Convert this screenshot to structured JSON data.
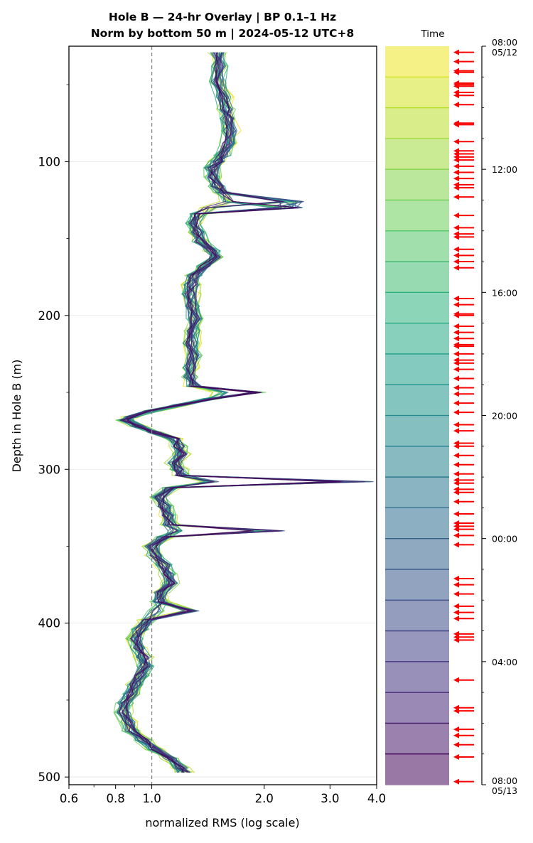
{
  "title_line1": "Hole B — 24-hr Overlay  |  BP 0.1–1 Hz",
  "title_line2": "Norm by bottom 50 m  |  2024-05-12 UTC+8",
  "colorbar_label": "Time",
  "chart_data": {
    "type": "line",
    "xlabel": "normalized RMS  (log scale)",
    "ylabel": "Depth in Hole B (m)",
    "xscale": "log",
    "xlim": [
      0.6,
      4.0
    ],
    "xticks": [
      0.6,
      0.8,
      1.0,
      2.0,
      3.0,
      4.0
    ],
    "xtick_labels": [
      "0.6",
      "0.8",
      "1.0",
      "2.0",
      "3.0",
      "4.0"
    ],
    "ylim": [
      505,
      25
    ],
    "yticks": [
      100,
      200,
      300,
      400,
      500
    ],
    "reference_line_x": 1.0,
    "grid": "horizontal",
    "num_traces": 36,
    "colormap": "viridis (early = yellow, late = dark purple)",
    "series_depths_m": [
      29,
      38,
      48,
      58,
      66,
      72,
      80,
      88,
      96,
      100,
      104,
      110,
      116,
      120,
      126,
      130,
      134,
      140,
      146,
      152,
      158,
      162,
      168,
      174,
      180,
      186,
      194,
      202,
      210,
      218,
      226,
      234,
      240,
      246,
      250,
      254,
      258,
      262,
      266,
      268,
      272,
      276,
      280,
      285,
      290,
      296,
      300,
      304,
      308,
      312,
      318,
      324,
      330,
      336,
      340,
      344,
      350,
      356,
      362,
      368,
      374,
      380,
      386,
      392,
      398,
      404,
      410,
      416,
      422,
      428,
      434,
      440,
      446,
      452,
      458,
      464,
      470,
      476,
      482,
      488,
      494,
      497
    ],
    "median_profile_rms": [
      1.5,
      1.52,
      1.5,
      1.55,
      1.58,
      1.6,
      1.62,
      1.6,
      1.55,
      1.5,
      1.45,
      1.46,
      1.5,
      1.55,
      1.6,
      1.42,
      1.33,
      1.3,
      1.32,
      1.35,
      1.45,
      1.48,
      1.38,
      1.3,
      1.28,
      1.27,
      1.28,
      1.3,
      1.28,
      1.27,
      1.29,
      1.27,
      1.26,
      1.3,
      1.55,
      1.45,
      1.2,
      1.0,
      0.88,
      0.85,
      0.92,
      1.02,
      1.15,
      1.18,
      1.2,
      1.15,
      1.18,
      1.2,
      1.45,
      1.12,
      1.05,
      1.08,
      1.1,
      1.12,
      1.15,
      1.08,
      1.0,
      1.02,
      1.08,
      1.1,
      1.12,
      1.06,
      1.05,
      1.02,
      0.97,
      0.93,
      0.9,
      0.92,
      0.95,
      0.96,
      0.93,
      0.9,
      0.88,
      0.85,
      0.84,
      0.86,
      0.88,
      0.95,
      1.02,
      1.12,
      1.2,
      1.22
    ],
    "spike_events": [
      {
        "depth_m": 128,
        "peak_rms": 2.55
      },
      {
        "depth_m": 250,
        "peak_rms": 2.05
      },
      {
        "depth_m": 307,
        "peak_rms": 4.0
      },
      {
        "depth_m": 340,
        "peak_rms": 2.3
      },
      {
        "depth_m": 390,
        "peak_rms": 1.35
      }
    ],
    "colorbar": {
      "start": "2024-05-12 08:00",
      "end": "2024-05-13 08:00",
      "num_bands": 24,
      "tick_labels": [
        {
          "label": "08:00\n05/12",
          "hours": 0
        },
        {
          "label": "12:00",
          "hours": 4
        },
        {
          "label": "16:00",
          "hours": 8
        },
        {
          "label": "20:00",
          "hours": 12
        },
        {
          "label": "00:00",
          "hours": 16
        },
        {
          "label": "04:00",
          "hours": 20
        },
        {
          "label": "08:00\n05/13",
          "hours": 24
        }
      ],
      "marker_hours": [
        0.2,
        0.5,
        0.8,
        0.85,
        1.2,
        1.25,
        1.3,
        1.5,
        1.6,
        1.9,
        2.5,
        2.55,
        3.1,
        3.4,
        3.5,
        3.6,
        3.7,
        3.9,
        4.1,
        4.3,
        4.5,
        4.6,
        4.9,
        5.5,
        5.9,
        6.1,
        6.2,
        6.6,
        6.8,
        7.0,
        7.2,
        8.2,
        8.4,
        8.7,
        8.75,
        9.1,
        9.3,
        9.5,
        9.7,
        9.75,
        10.0,
        10.2,
        10.3,
        10.5,
        10.8,
        11.1,
        11.3,
        11.6,
        11.9,
        12.3,
        12.5,
        12.9,
        13.0,
        13.3,
        13.6,
        13.9,
        14.1,
        14.2,
        14.4,
        14.5,
        14.8,
        15.2,
        15.5,
        15.6,
        15.7,
        15.9,
        16.2,
        17.3,
        17.5,
        17.8,
        18.2,
        18.4,
        18.6,
        19.1,
        19.2,
        19.3,
        20.6,
        21.5,
        21.6,
        22.2,
        22.4,
        22.7,
        23.1,
        23.9
      ]
    }
  }
}
